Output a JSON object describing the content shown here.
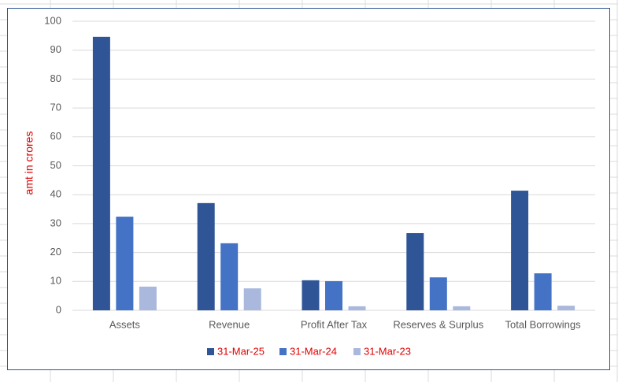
{
  "chart_data": {
    "type": "bar",
    "y_label": "amt in crores",
    "categories": [
      "Assets",
      "Revenue",
      "Profit After Tax",
      "Reserves & Surplus",
      "Total Borrowings"
    ],
    "series": [
      {
        "name": "31-Mar-25",
        "color": "#2f5597",
        "values": [
          94.6,
          37.1,
          10.4,
          26.7,
          41.4
        ]
      },
      {
        "name": "31-Mar-24",
        "color": "#4472c4",
        "values": [
          32.4,
          23.2,
          10.1,
          11.4,
          12.8
        ]
      },
      {
        "name": "31-Mar-23",
        "color": "#a9b8dc",
        "values": [
          8.2,
          7.6,
          1.4,
          1.4,
          1.6
        ]
      }
    ],
    "ylim": [
      0,
      100
    ],
    "yticks": [
      0,
      10,
      20,
      30,
      40,
      50,
      60,
      70,
      80,
      90,
      100
    ],
    "grid": true,
    "legend": "bottom"
  }
}
